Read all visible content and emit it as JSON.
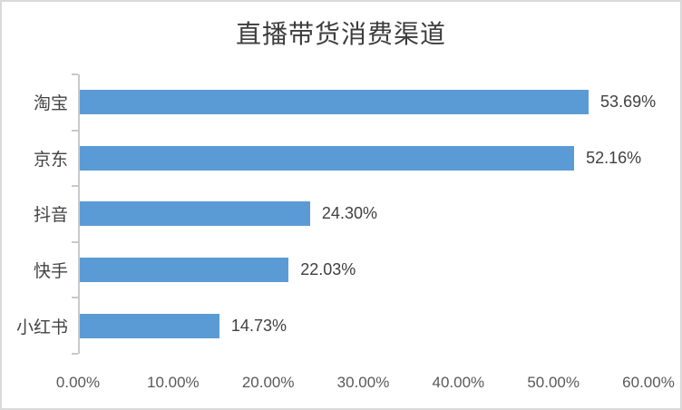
{
  "title": "直播带货消费渠道",
  "chart_data": {
    "type": "bar",
    "orientation": "horizontal",
    "title": "直播带货消费渠道",
    "categories": [
      "淘宝",
      "京东",
      "抖音",
      "快手",
      "小红书"
    ],
    "values": [
      53.69,
      52.16,
      24.3,
      22.03,
      14.73
    ],
    "data_labels": [
      "53.69%",
      "52.16%",
      "24.30%",
      "22.03%",
      "14.73%"
    ],
    "x_axis_ticks": [
      "0.00%",
      "10.00%",
      "20.00%",
      "30.00%",
      "40.00%",
      "50.00%",
      "60.00%"
    ],
    "xlim": [
      0,
      60
    ],
    "xlabel": "",
    "ylabel": "",
    "grid": "off",
    "legend": "none",
    "bar_color": "#5b9bd5",
    "axis_line_color": "#c9c9c9",
    "title_color": "#3d3d3d",
    "axis_label_color": "#595959"
  }
}
